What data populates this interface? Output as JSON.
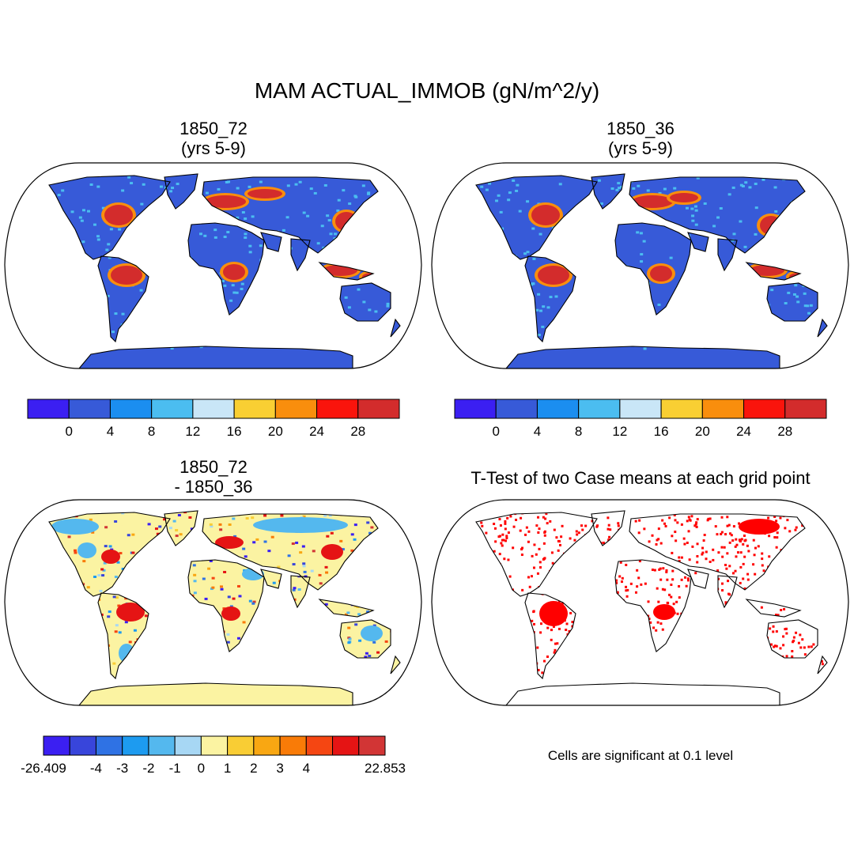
{
  "title": "MAM ACTUAL_IMMOB (gN/m^2/y)",
  "panels": {
    "top_left": {
      "title_line1": "1850_72",
      "title_line2": "(yrs 5-9)"
    },
    "top_right": {
      "title_line1": "1850_36",
      "title_line2": "(yrs 5-9)"
    },
    "bottom_left": {
      "title_line1": "1850_72",
      "title_line2": "- 1850_36"
    },
    "bottom_right": {
      "title": "T-Test of two Case means at each grid point",
      "note": "Cells are significant at 0.1 level"
    }
  },
  "colorbars": {
    "case": {
      "colors": [
        "#3b1ff2",
        "#375ad8",
        "#1b8ef0",
        "#4bbdf0",
        "#c9e6f7",
        "#f9cf33",
        "#f98e0d",
        "#fa140c",
        "#d32c2c"
      ],
      "labels": [
        "0",
        "4",
        "8",
        "12",
        "16",
        "20",
        "24",
        "28"
      ]
    },
    "diff": {
      "colors": [
        "#3b1ff2",
        "#3845db",
        "#2f72e4",
        "#1d9bf0",
        "#54b8ee",
        "#a7d7f4",
        "#fbf3a2",
        "#f9cd34",
        "#f9a712",
        "#f97b07",
        "#f54612",
        "#e51414",
        "#d23535"
      ],
      "labels": [
        "-26.409",
        "-4",
        "-3",
        "-2",
        "-1",
        "0",
        "1",
        "2",
        "3",
        "4",
        "22.853"
      ]
    }
  },
  "map_colors": {
    "ocean": "#ffffff",
    "land_low": "#375ad8",
    "land_mid": "#4bbdf0",
    "land_high": "#d32c2c",
    "land_warm": "#f98e0d",
    "diff_base": "#fbf3a2",
    "ttest_sig": "#ff0000"
  }
}
